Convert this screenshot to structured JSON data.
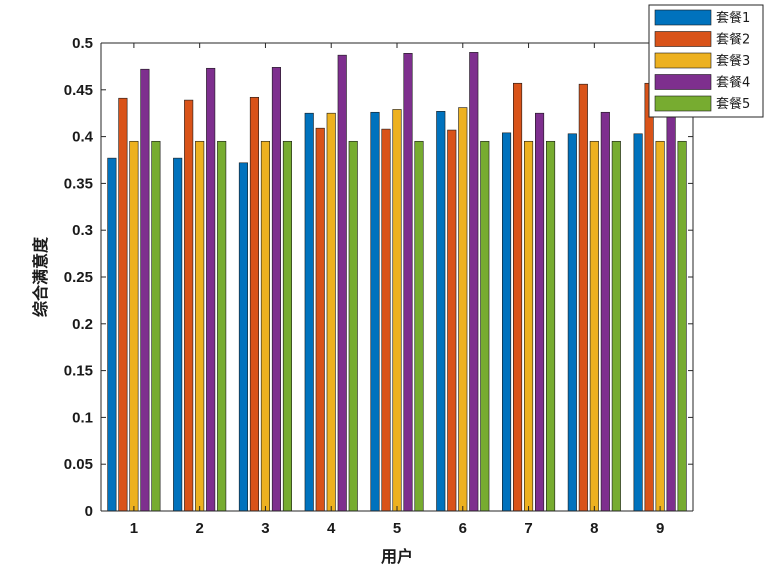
{
  "chart_data": {
    "type": "bar",
    "categories": [
      "1",
      "2",
      "3",
      "4",
      "5",
      "6",
      "7",
      "8",
      "9"
    ],
    "series": [
      {
        "name": "套餐1",
        "color": "#0072BD",
        "values": [
          0.377,
          0.377,
          0.372,
          0.425,
          0.426,
          0.427,
          0.404,
          0.403,
          0.403
        ]
      },
      {
        "name": "套餐2",
        "color": "#D95319",
        "values": [
          0.441,
          0.439,
          0.442,
          0.409,
          0.408,
          0.407,
          0.457,
          0.456,
          0.457
        ]
      },
      {
        "name": "套餐3",
        "color": "#EDB120",
        "values": [
          0.395,
          0.395,
          0.395,
          0.425,
          0.429,
          0.431,
          0.395,
          0.395,
          0.395
        ]
      },
      {
        "name": "套餐4",
        "color": "#7E2F8E",
        "values": [
          0.472,
          0.473,
          0.474,
          0.487,
          0.489,
          0.49,
          0.425,
          0.426,
          0.425
        ]
      },
      {
        "name": "套餐5",
        "color": "#77AC30",
        "values": [
          0.395,
          0.395,
          0.395,
          0.395,
          0.395,
          0.395,
          0.395,
          0.395,
          0.395
        ]
      }
    ],
    "xlabel": "用户",
    "ylabel": "综合满意度",
    "ylim": [
      0,
      0.5
    ],
    "yticks": [
      "0",
      "0.05",
      "0.1",
      "0.15",
      "0.2",
      "0.25",
      "0.3",
      "0.35",
      "0.4",
      "0.45",
      "0.5"
    ],
    "grid": false,
    "legend_position": "top-right"
  }
}
